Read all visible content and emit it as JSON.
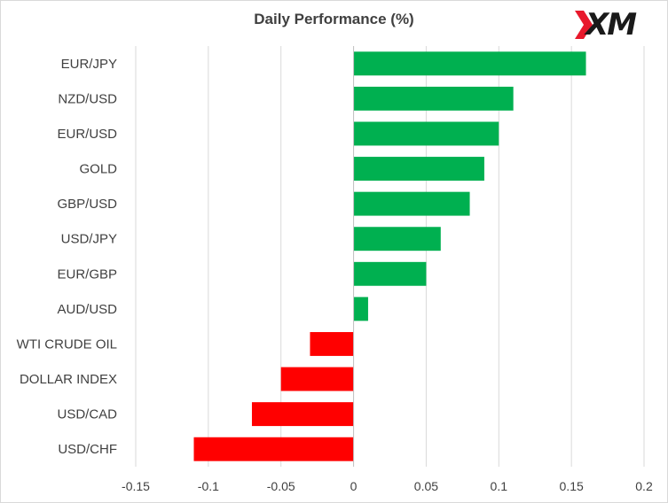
{
  "chart_data": {
    "type": "bar",
    "orientation": "horizontal",
    "title": "Daily Performance (%)",
    "categories": [
      "EUR/JPY",
      "NZD/USD",
      "EUR/USD",
      "GOLD",
      "GBP/USD",
      "USD/JPY",
      "EUR/GBP",
      "AUD/USD",
      "WTI CRUDE OIL",
      "DOLLAR INDEX",
      "USD/CAD",
      "USD/CHF"
    ],
    "values": [
      0.16,
      0.11,
      0.1,
      0.09,
      0.08,
      0.06,
      0.05,
      0.01,
      -0.03,
      -0.05,
      -0.07,
      -0.11
    ],
    "xlim": [
      -0.15,
      0.2
    ],
    "xticks": [
      "-0.15",
      "-0.1",
      "-0.05",
      "0",
      "0.05",
      "0.1",
      "0.15",
      "0.2"
    ],
    "xtick_values": [
      -0.15,
      -0.1,
      -0.05,
      0,
      0.05,
      0.1,
      0.15,
      0.2
    ],
    "grid": "vertical",
    "colors": {
      "positive": "#00b050",
      "negative": "#ff0000",
      "grid": "#d9d9d9",
      "axis": "#bfbfbf",
      "logo_accent": "#e8192c"
    }
  },
  "logo": {
    "text": "XM"
  }
}
